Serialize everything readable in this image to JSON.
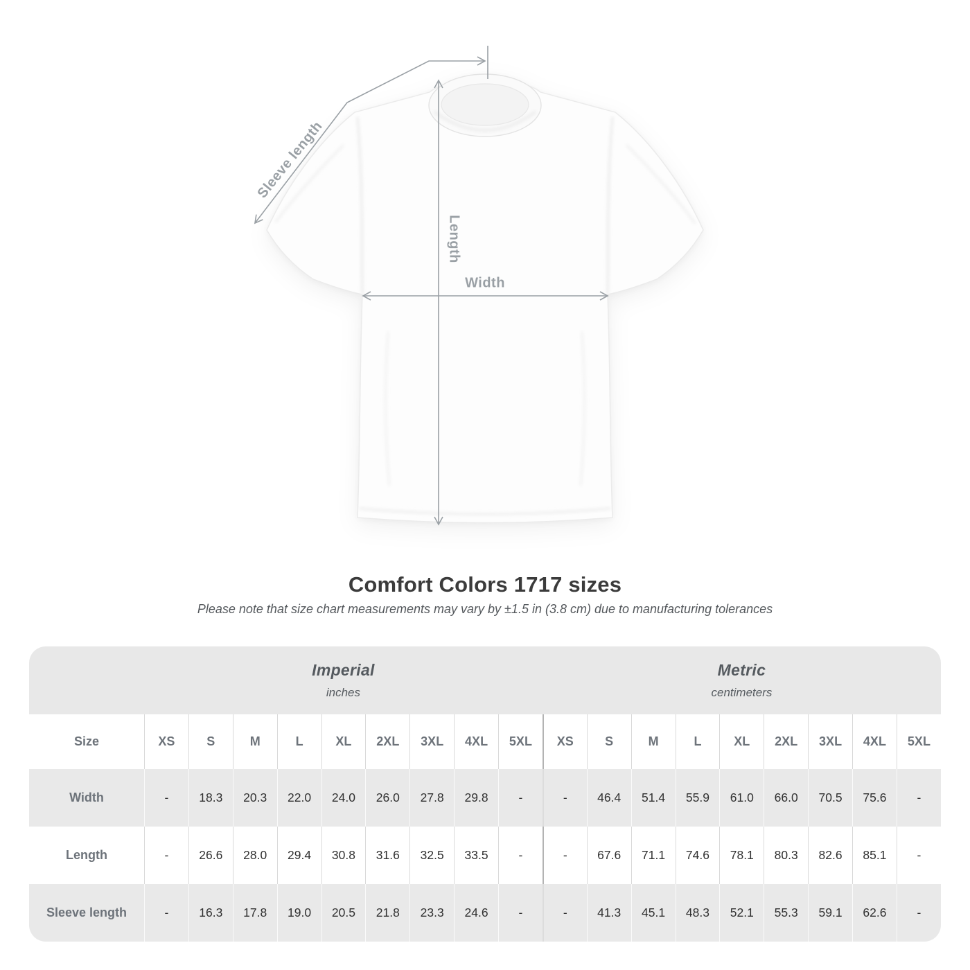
{
  "diagram": {
    "sleeve_length_label": "Sleeve length",
    "length_label": "Length",
    "width_label": "Width"
  },
  "chart_data": {
    "type": "table",
    "title": "Comfort Colors 1717 sizes",
    "note": "Please note that size chart measurements may vary by ±1.5 in (3.8 cm) due to manufacturing tolerances",
    "size_header": "Size",
    "sizes": [
      "XS",
      "S",
      "M",
      "L",
      "XL",
      "2XL",
      "3XL",
      "4XL",
      "5XL"
    ],
    "unit_groups": [
      {
        "label": "Imperial",
        "sublabel": "inches"
      },
      {
        "label": "Metric",
        "sublabel": "centimeters"
      }
    ],
    "rows": [
      {
        "label": "Width",
        "imperial": [
          "-",
          "18.3",
          "20.3",
          "22.0",
          "24.0",
          "26.0",
          "27.8",
          "29.8",
          "-"
        ],
        "metric": [
          "-",
          "46.4",
          "51.4",
          "55.9",
          "61.0",
          "66.0",
          "70.5",
          "75.6",
          "-"
        ]
      },
      {
        "label": "Length",
        "imperial": [
          "-",
          "26.6",
          "28.0",
          "29.4",
          "30.8",
          "31.6",
          "32.5",
          "33.5",
          "-"
        ],
        "metric": [
          "-",
          "67.6",
          "71.1",
          "74.6",
          "78.1",
          "80.3",
          "82.6",
          "85.1",
          "-"
        ]
      },
      {
        "label": "Sleeve length",
        "imperial": [
          "-",
          "16.3",
          "17.8",
          "19.0",
          "20.5",
          "21.8",
          "23.3",
          "24.6",
          "-"
        ],
        "metric": [
          "-",
          "41.3",
          "45.1",
          "48.3",
          "52.1",
          "55.3",
          "59.1",
          "62.6",
          "-"
        ]
      }
    ]
  },
  "colors": {
    "table_band": "#e8e8e8",
    "row_stripe": "#e9e9e9",
    "header_text": "#6d737a",
    "value_text": "#303030",
    "title_text": "#3b3b3b",
    "note_text": "#54585c",
    "measure_gray": "#9aa0a5",
    "separator_light": "#d9d9d9"
  }
}
